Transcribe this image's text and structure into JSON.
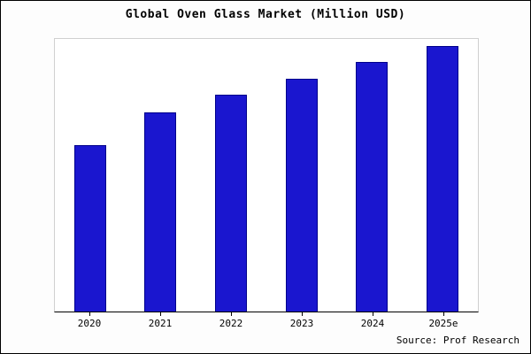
{
  "chart_data": {
    "type": "bar",
    "title": "Global Oven Glass Market (Million USD)",
    "categories": [
      "2020",
      "2021",
      "2022",
      "2023",
      "2024",
      "2025e"
    ],
    "values": [
      188,
      225,
      245,
      263,
      282,
      300
    ],
    "ylim": [
      0,
      310
    ],
    "xlabel": "",
    "ylabel": "",
    "grid": false,
    "legend": "none",
    "bar_color": "#1a16cf",
    "bar_border_color": "#00008b",
    "source": "Source: Prof Research"
  }
}
